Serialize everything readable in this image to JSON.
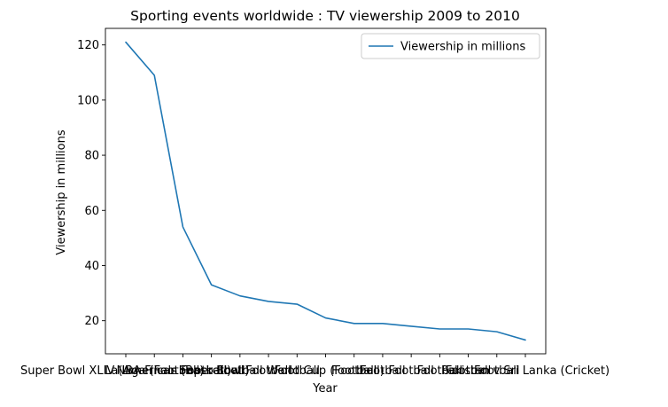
{
  "chart_data": {
    "type": "line",
    "title": "Sporting events worldwide : TV viewership 2009 to 2010",
    "xlabel": "Year",
    "ylabel": "Viewership in millions",
    "x_tick_labels": [
      "Super Bowl XLIV (American Football)",
      "La Liga (Football)",
      "NBA Finals (Basketball)",
      "Super Bowl",
      "Football",
      "Football",
      "Football",
      "World Cup (Football)",
      "Football",
      "Football",
      "Football",
      "Football",
      "Football",
      "Football",
      "Pakistan v Sri Lanka (Cricket)"
    ],
    "y_ticks": [
      20,
      40,
      60,
      80,
      100,
      120
    ],
    "ylim": [
      8,
      126
    ],
    "grid": false,
    "legend_position": "top-right",
    "series": [
      {
        "name": "Viewership in millions",
        "color": "#1f77b4",
        "values": [
          121,
          109,
          54,
          33,
          29,
          27,
          26,
          21,
          19,
          19,
          18,
          17,
          17,
          16,
          13
        ]
      }
    ]
  }
}
